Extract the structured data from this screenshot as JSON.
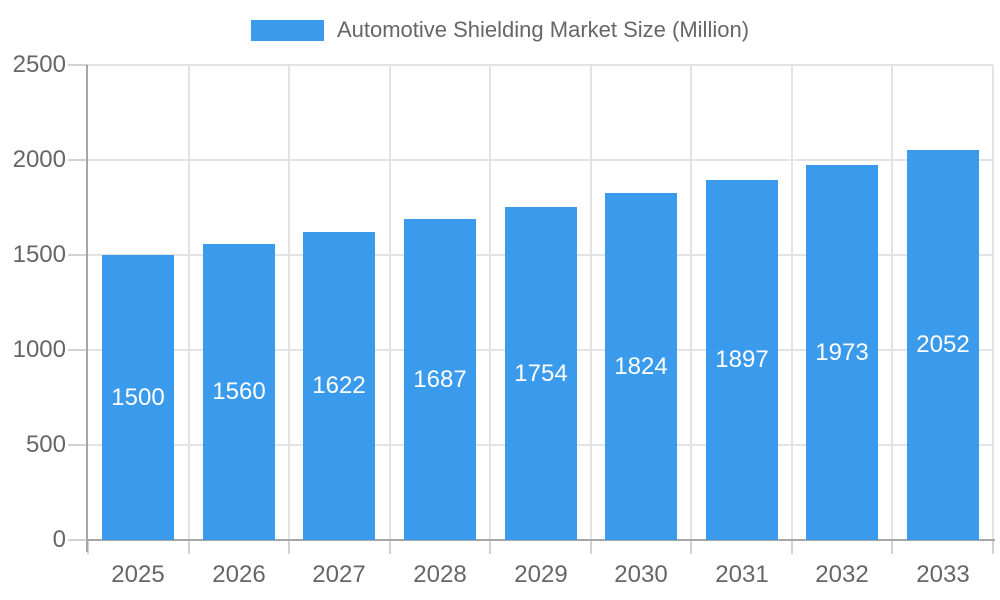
{
  "page": {
    "background": "#FFFFFF"
  },
  "legend": {
    "label": "Automotive Shielding Market Size (Million)"
  },
  "chart_data": {
    "type": "bar",
    "title": "Automotive Shielding Market Size (Million)",
    "categories": [
      "2025",
      "2026",
      "2027",
      "2028",
      "2029",
      "2030",
      "2031",
      "2032",
      "2033"
    ],
    "values": [
      1500,
      1560,
      1622,
      1687,
      1754,
      1824,
      1897,
      1973,
      2052
    ],
    "xlabel": "",
    "ylabel": "",
    "ylim": [
      0,
      2500
    ],
    "y_ticks": [
      0,
      500,
      1000,
      1500,
      2000,
      2500
    ],
    "grid": true,
    "legend_position": "top",
    "value_labels_shown": true,
    "colors": {
      "bar": "#3A9AEC",
      "value_label_text": "#FFFFFF",
      "tick_label_text": "#666666",
      "legend_text": "#666666",
      "gridline": "#E3E3E3",
      "tick_mark": "#D2D2D2",
      "axis_line": "#A6A6A6",
      "background": "#FFFFFF"
    }
  }
}
